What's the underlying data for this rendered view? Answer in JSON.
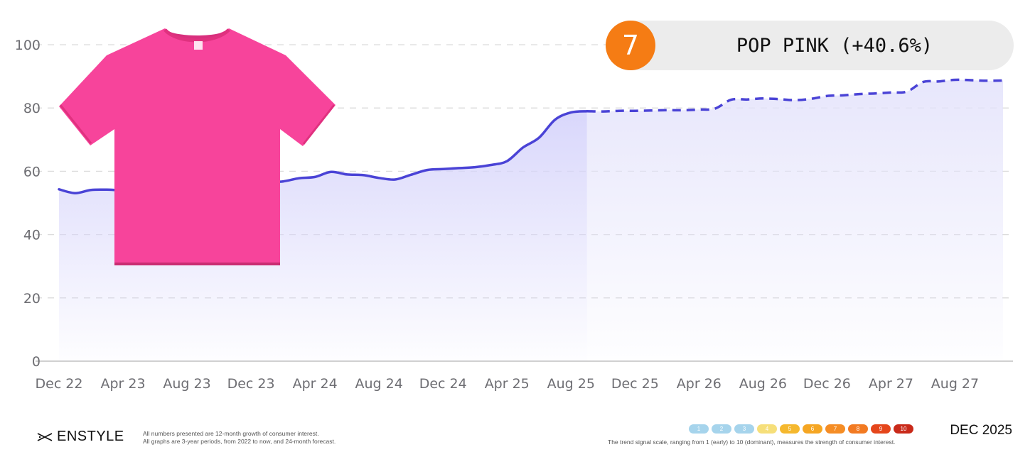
{
  "chart_data": {
    "type": "area",
    "x": [
      "Dec 22",
      "Jan 23",
      "Feb 23",
      "Mar 23",
      "Apr 23",
      "May 23",
      "Jun 23",
      "Jul 23",
      "Aug 23",
      "Sep 23",
      "Oct 23",
      "Nov 23",
      "Dec 23",
      "Jan 24",
      "Feb 24",
      "Mar 24",
      "Apr 24",
      "May 24",
      "Jun 24",
      "Jul 24",
      "Aug 24",
      "Sep 24",
      "Oct 24",
      "Nov 24",
      "Dec 24",
      "Jan 25",
      "Feb 25",
      "Mar 25",
      "Apr 25",
      "May 25",
      "Jun 25",
      "Jul 25",
      "Aug 25",
      "Sep 25",
      "Oct 25",
      "Nov 25",
      "Dec 25",
      "Jan 26",
      "Feb 26",
      "Mar 26",
      "Apr 26",
      "May 26",
      "Jun 26",
      "Jul 26",
      "Aug 26",
      "Sep 26",
      "Oct 26",
      "Nov 26",
      "Dec 26",
      "Jan 27",
      "Feb 27",
      "Mar 27",
      "Apr 27",
      "May 27",
      "Jun 27",
      "Jul 27",
      "Aug 27",
      "Sep 27",
      "Oct 27",
      "Nov 27"
    ],
    "series": [
      {
        "values": [
          54.3,
          53.1,
          54.1,
          54.2,
          54.0,
          54.5,
          54.8,
          55.0,
          55.2,
          55.4,
          55.6,
          55.9,
          56.1,
          56.6,
          56.8,
          57.8,
          58.2,
          59.8,
          59.0,
          58.8,
          57.9,
          57.4,
          58.9,
          60.4,
          60.7,
          61.0,
          61.3,
          62.0,
          63.2,
          67.5,
          70.6,
          76.3,
          78.6,
          79.0,
          78.9,
          79.1,
          79.1,
          79.2,
          79.3,
          79.3,
          79.5,
          79.8,
          82.6,
          82.7,
          83.0,
          82.8,
          82.5,
          82.9,
          83.8,
          84.0,
          84.4,
          84.6,
          84.9,
          85.2,
          88.2,
          88.4,
          88.9,
          88.8,
          88.6,
          88.7
        ],
        "actual_through": "Sep 25",
        "forecast_from": "Oct 25"
      }
    ],
    "x_ticks": [
      "Dec 22",
      "Apr 23",
      "Aug 23",
      "Dec 23",
      "Apr 24",
      "Aug 24",
      "Dec 24",
      "Apr 25",
      "Aug 25",
      "Dec 25",
      "Apr 26",
      "Aug 26",
      "Dec 26",
      "Apr 27",
      "Aug 27"
    ],
    "y_ticks": [
      0,
      20,
      40,
      60,
      80,
      100
    ],
    "ylim": [
      0,
      100
    ],
    "grid": true,
    "colors": {
      "line": "#4a43d6",
      "fill": "#dcdbfb",
      "grid": "#dcdcdc"
    }
  },
  "badge": {
    "rank": "7",
    "label": "POP PINK (+40.6%)",
    "color": "#f57c14"
  },
  "product": {
    "name": "tshirt-image",
    "color": "#f7449b"
  },
  "footer": {
    "brand": "ENSTYLE",
    "note1": "All numbers presented are 12-month growth of consumer interest.",
    "note2": "All graphs are 3-year periods, from 2022 to now, and 24-month forecast.",
    "scale_note": "The trend signal scale, ranging from 1 (early) to 10 (dominant), measures the strength of consumer interest.",
    "date": "DEC 2025",
    "scale": [
      {
        "label": "1",
        "color": "#a6d4ec"
      },
      {
        "label": "2",
        "color": "#a6d4ec"
      },
      {
        "label": "3",
        "color": "#a6d4ec"
      },
      {
        "label": "4",
        "color": "#f6df7a"
      },
      {
        "label": "5",
        "color": "#f5b82e"
      },
      {
        "label": "6",
        "color": "#f5a623"
      },
      {
        "label": "7",
        "color": "#f58d25"
      },
      {
        "label": "8",
        "color": "#f27a22"
      },
      {
        "label": "9",
        "color": "#e5461b"
      },
      {
        "label": "10",
        "color": "#c92a1a"
      }
    ]
  }
}
